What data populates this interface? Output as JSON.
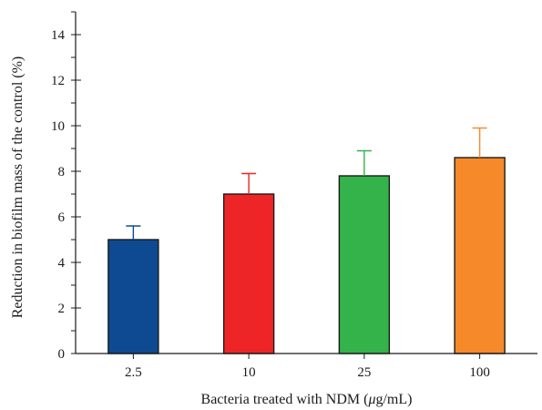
{
  "chart_data": {
    "type": "bar",
    "title": "",
    "xlabel": "Bacteria treated with NDM (",
    "xlabel_mu": "μ",
    "xlabel_tail": "g/mL)",
    "ylabel": "Reduction in biofilm mass of the control (%)",
    "ylim": [
      0,
      15
    ],
    "yticks": [
      0,
      2,
      4,
      6,
      8,
      10,
      12,
      14
    ],
    "yticks_labels": [
      "0",
      "2",
      "4",
      "6",
      "8",
      "10",
      "12",
      "14"
    ],
    "grid": false,
    "legend": "none",
    "categories": [
      "2.5",
      "10",
      "25",
      "100"
    ],
    "values": [
      5.0,
      7.0,
      7.8,
      8.6
    ],
    "errors": [
      0.6,
      0.9,
      1.1,
      1.3
    ],
    "colors": [
      "#0e4a91",
      "#ee2526",
      "#33b34a",
      "#f6892a"
    ]
  }
}
